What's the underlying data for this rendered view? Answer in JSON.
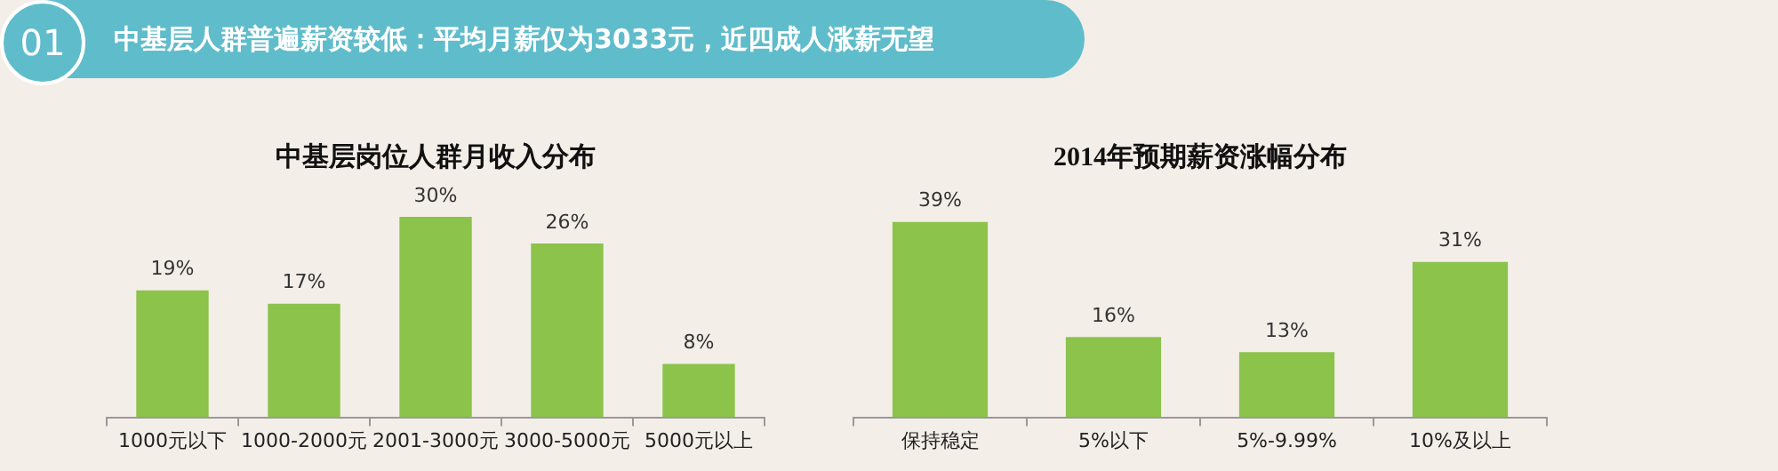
{
  "chart_data": [
    {
      "type": "other",
      "title": "中基层人群普遍薪资较低：平均月薪仅为3033元，近四成人涨薪无望",
      "annotations": [
        "01"
      ]
    },
    {
      "type": "bar",
      "title": "中基层岗位人群月收入分布",
      "categories": [
        "1000元以下",
        "1000-2000元",
        "2001-3000元",
        "3000-5000元",
        "5000元以上"
      ],
      "values": [
        19,
        17,
        30,
        26,
        8
      ],
      "value_labels": [
        "19%",
        "17%",
        "30%",
        "26%",
        "8%"
      ],
      "color": "#8bc34b",
      "tick_labels": "x"
    },
    {
      "type": "bar",
      "title": "2014年预期薪资涨幅分布",
      "categories": [
        "保持稳定",
        "5%以下",
        "5%-9.99%",
        "10%及以上"
      ],
      "values": [
        39,
        16,
        13,
        31
      ],
      "value_labels": [
        "39%",
        "16%",
        "13%",
        "31%"
      ],
      "color": "#8bc34b",
      "tick_labels": "x"
    }
  ]
}
